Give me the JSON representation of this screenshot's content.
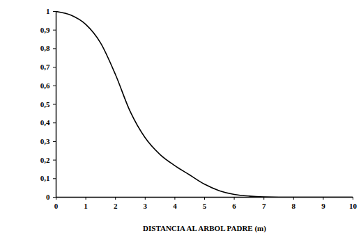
{
  "chart_data": {
    "type": "line",
    "x_label": "DISTANCIA AL ARBOL PADRE (m)",
    "x": [
      0,
      0.5,
      1,
      1.5,
      2,
      2.5,
      3,
      3.5,
      4,
      4.5,
      5,
      5.5,
      6,
      6.5,
      7,
      8,
      9,
      10
    ],
    "series": [
      {
        "color": "#000000",
        "values": [
          1.0,
          0.98,
          0.93,
          0.83,
          0.66,
          0.46,
          0.32,
          0.23,
          0.17,
          0.12,
          0.07,
          0.035,
          0.015,
          0.006,
          0.002,
          0,
          0,
          0
        ]
      }
    ],
    "xlim": [
      0,
      10
    ],
    "xticks": [
      0,
      1,
      2,
      3,
      4,
      5,
      6,
      7,
      8,
      9,
      10
    ],
    "ylim": [
      0,
      1
    ],
    "yticks": [
      0,
      {
        "value": 0.1,
        "label": "0,1"
      },
      {
        "value": 0.2,
        "label": "0,2"
      },
      {
        "value": 0.3,
        "label": "0,3"
      },
      {
        "value": 0.4,
        "label": "0,4"
      },
      {
        "value": 0.5,
        "label": "0,5"
      },
      {
        "value": 0.6,
        "label": "0,6"
      },
      {
        "value": 0.7,
        "label": "0,7"
      },
      {
        "value": 0.8,
        "label": "0,8"
      },
      {
        "value": 0.9,
        "label": "0,9"
      },
      1
    ],
    "grid": false
  }
}
